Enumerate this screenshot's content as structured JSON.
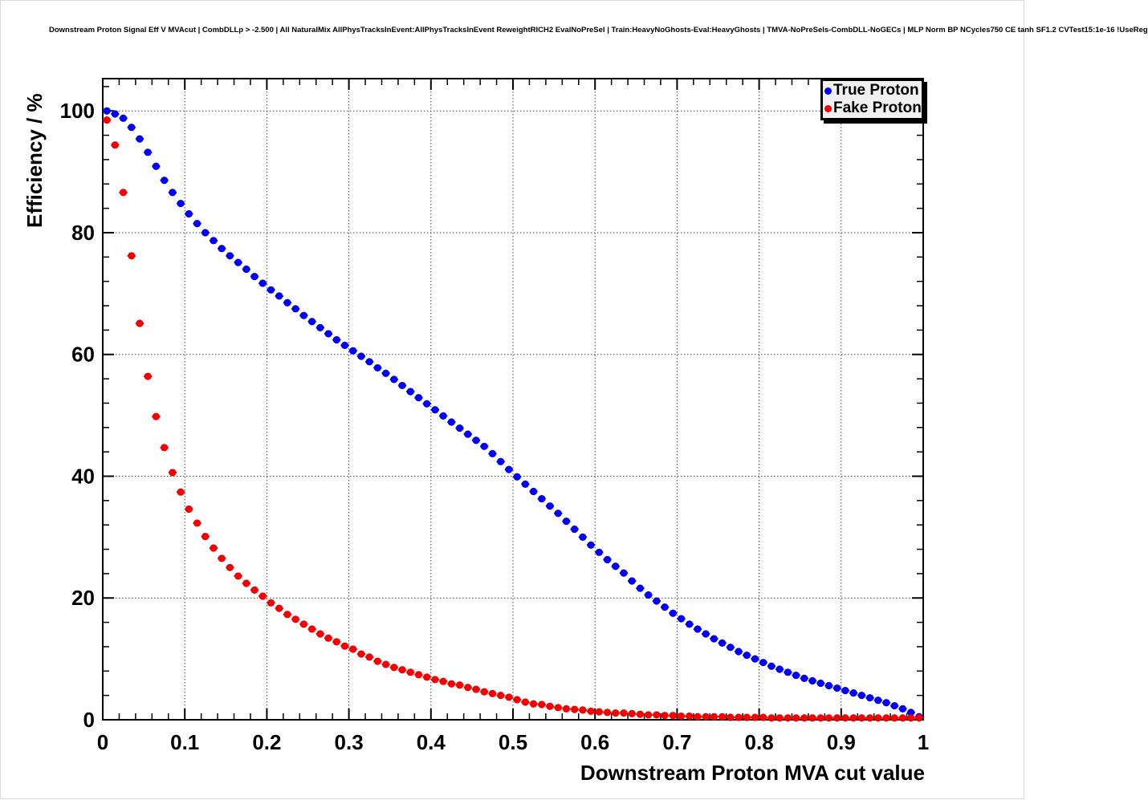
{
  "title": "Downstream Proton Signal Eff V MVAcut | CombDLLp > -2.500 | All NaturalMix AllPhysTracksInEvent:AllPhysTracksInEvent ReweightRICH2 EvalNoPreSel | Train:HeavyNoGhosts-Eval:HeavyGhosts | TMVA-NoPreSels-CombDLL-NoGECs | MLP Norm BP NCycles750 CE tanh SF1.2 CVTest15:1e-16 !UseReg",
  "colors": {
    "true_proton": "#0000f5",
    "fake_proton": "#f50000",
    "frame": "#000000",
    "grid": "#444444",
    "legend_bg": "#f0f0f0"
  },
  "chart_data": {
    "type": "scatter",
    "title": "Downstream Proton Signal Eff V MVAcut | CombDLLp > -2.500 | All NaturalMix AllPhysTracksInEvent:AllPhysTracksInEvent ReweightRICH2 EvalNoPreSel | Train:HeavyNoGhosts-Eval:HeavyGhosts | TMVA-NoPreSels-CombDLL-NoGECs | MLP Norm BP NCycles750 CE tanh SF1.2 CVTest15:1e-16 !UseReg",
    "xlabel": "Downstream Proton MVA cut value",
    "ylabel": "Efficiency / %",
    "xlim": [
      0,
      1
    ],
    "ylim": [
      0,
      105.3
    ],
    "grid": "dotted lines at major ticks",
    "legend_position": "top-right",
    "x_ticks": [
      0,
      0.1,
      0.2,
      0.3,
      0.4,
      0.5,
      0.6,
      0.7,
      0.8,
      0.9,
      1
    ],
    "x_tick_labels": [
      "0",
      "0.1",
      "0.2",
      "0.3",
      "0.4",
      "0.5",
      "0.6",
      "0.7",
      "0.8",
      "0.9",
      "1"
    ],
    "y_ticks": [
      0,
      20,
      40,
      60,
      80,
      100
    ],
    "y_tick_labels": [
      "0",
      "20",
      "40",
      "60",
      "80",
      "100"
    ],
    "x_minor_step": 0.02,
    "y_minor_step": 4,
    "marker": "filled-circle",
    "x_error_half_width": 0.005,
    "x": [
      0.005,
      0.015,
      0.025,
      0.035,
      0.045,
      0.055,
      0.065,
      0.075,
      0.085,
      0.095,
      0.105,
      0.115,
      0.125,
      0.135,
      0.145,
      0.155,
      0.165,
      0.175,
      0.185,
      0.195,
      0.205,
      0.215,
      0.225,
      0.235,
      0.245,
      0.255,
      0.265,
      0.275,
      0.285,
      0.295,
      0.305,
      0.315,
      0.325,
      0.335,
      0.345,
      0.355,
      0.365,
      0.375,
      0.385,
      0.395,
      0.405,
      0.415,
      0.425,
      0.435,
      0.445,
      0.455,
      0.465,
      0.475,
      0.485,
      0.495,
      0.505,
      0.515,
      0.525,
      0.535,
      0.545,
      0.555,
      0.565,
      0.575,
      0.585,
      0.595,
      0.605,
      0.615,
      0.625,
      0.635,
      0.645,
      0.655,
      0.665,
      0.675,
      0.685,
      0.695,
      0.705,
      0.715,
      0.725,
      0.735,
      0.745,
      0.755,
      0.765,
      0.775,
      0.785,
      0.795,
      0.805,
      0.815,
      0.825,
      0.835,
      0.845,
      0.855,
      0.865,
      0.875,
      0.885,
      0.895,
      0.905,
      0.915,
      0.925,
      0.935,
      0.945,
      0.955,
      0.965,
      0.975,
      0.985,
      0.995
    ],
    "series": [
      {
        "name": "True Proton",
        "color": "#0000f5",
        "y": [
          100.0,
          99.5,
          98.8,
          97.3,
          95.4,
          93.2,
          90.9,
          88.6,
          86.6,
          84.8,
          83.1,
          81.5,
          80.0,
          78.7,
          77.4,
          76.2,
          75.1,
          74.0,
          72.8,
          71.7,
          70.6,
          69.6,
          68.5,
          67.5,
          66.4,
          65.4,
          64.4,
          63.4,
          62.4,
          61.5,
          60.6,
          59.7,
          58.8,
          57.8,
          56.9,
          55.9,
          54.9,
          53.9,
          52.9,
          51.9,
          50.9,
          49.9,
          48.9,
          47.9,
          46.9,
          45.9,
          44.9,
          43.7,
          42.4,
          41.1,
          39.9,
          38.7,
          37.5,
          36.3,
          35.1,
          33.9,
          32.6,
          31.3,
          30.0,
          28.7,
          27.5,
          26.3,
          25.2,
          24.1,
          22.8,
          21.6,
          20.5,
          19.5,
          18.5,
          17.5,
          16.6,
          15.7,
          14.9,
          14.1,
          13.3,
          12.6,
          11.9,
          11.2,
          10.6,
          10.0,
          9.4,
          8.8,
          8.3,
          7.8,
          7.3,
          6.8,
          6.4,
          6.0,
          5.6,
          5.2,
          4.8,
          4.4,
          4.0,
          3.6,
          3.2,
          2.8,
          2.3,
          1.8,
          1.2,
          0.5
        ]
      },
      {
        "name": "Fake Proton",
        "color": "#f50000",
        "y": [
          98.5,
          94.4,
          86.6,
          76.2,
          65.1,
          56.4,
          49.8,
          44.7,
          40.6,
          37.4,
          34.6,
          32.3,
          30.1,
          28.2,
          26.5,
          25.0,
          23.6,
          22.4,
          21.3,
          20.3,
          19.2,
          18.3,
          17.3,
          16.5,
          15.7,
          14.9,
          14.1,
          13.4,
          12.8,
          12.1,
          11.6,
          10.8,
          10.3,
          9.6,
          9.1,
          8.6,
          8.2,
          7.8,
          7.4,
          7.0,
          6.6,
          6.3,
          5.9,
          5.7,
          5.3,
          5.0,
          4.6,
          4.3,
          4.0,
          3.7,
          3.3,
          2.9,
          2.6,
          2.5,
          2.2,
          2.0,
          1.8,
          1.7,
          1.6,
          1.4,
          1.3,
          1.2,
          1.1,
          1.1,
          1.0,
          0.9,
          0.8,
          0.8,
          0.7,
          0.7,
          0.6,
          0.6,
          0.5,
          0.5,
          0.5,
          0.5,
          0.4,
          0.4,
          0.4,
          0.4,
          0.4,
          0.3,
          0.3,
          0.3,
          0.3,
          0.3,
          0.3,
          0.3,
          0.3,
          0.3,
          0.3,
          0.3,
          0.3,
          0.3,
          0.3,
          0.3,
          0.3,
          0.3,
          0.3,
          0.3
        ]
      }
    ]
  }
}
